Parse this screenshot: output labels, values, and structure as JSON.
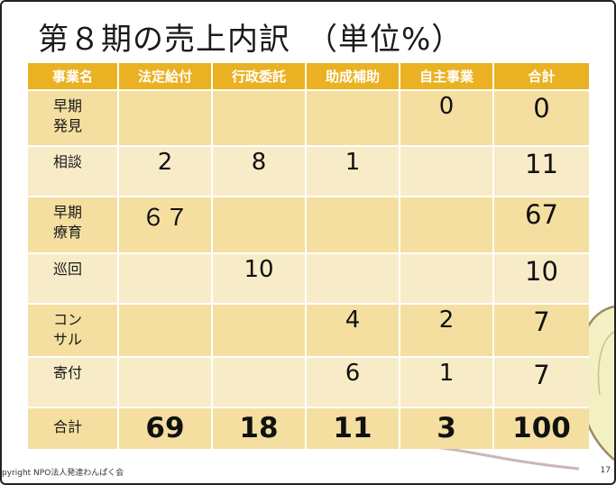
{
  "title": "第８期の売上内訳　（単位%）",
  "table": {
    "headers": [
      "事業名",
      "法定給付",
      "行政委託",
      "助成補助",
      "自主事業",
      "合計"
    ],
    "rows": [
      {
        "label": "早期\n発見",
        "cells": [
          "",
          "",
          "",
          "0",
          "0"
        ]
      },
      {
        "label": "相談",
        "cells": [
          "2",
          "8",
          "1",
          "",
          "11"
        ]
      },
      {
        "label": "早期\n療育",
        "cells": [
          "６７",
          "",
          "",
          "",
          "67"
        ]
      },
      {
        "label": "巡回",
        "cells": [
          "",
          "10",
          "",
          "",
          "10"
        ]
      },
      {
        "label": "コン\nサル",
        "cells": [
          "",
          "",
          "4",
          "2",
          "7"
        ]
      },
      {
        "label": "寄付",
        "cells": [
          "",
          "",
          "6",
          "1",
          "7"
        ]
      },
      {
        "label": "合計",
        "cells": [
          "69",
          "18",
          "11",
          "3",
          "100"
        ]
      }
    ]
  },
  "footer": {
    "copyright": "pyright NPO法人発達わんぱく会",
    "page": "17"
  },
  "colors": {
    "header_bg": "#eab223",
    "row_odd": "#f4dfa0",
    "row_even": "#f8ecc8"
  }
}
